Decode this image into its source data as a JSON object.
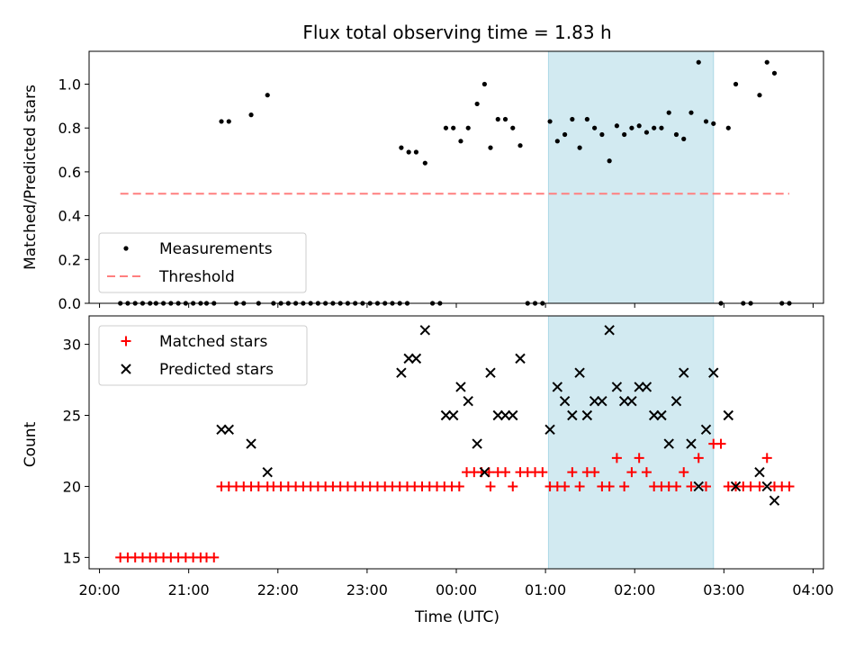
{
  "figure": {
    "title": "Flux total observing time = 1.83 h",
    "xlabel": "Time (UTC)"
  },
  "chart_data": [
    {
      "type": "scatter",
      "ylabel": "Matched/Predicted stars",
      "ylim": [
        0,
        1.15
      ],
      "yticks": [
        0.0,
        0.2,
        0.4,
        0.6,
        0.8,
        1.0
      ],
      "ytick_labels": [
        "0.0",
        "0.2",
        "0.4",
        "0.6",
        "0.8",
        "1.0"
      ],
      "xlim": [
        "19:53",
        "04:07"
      ],
      "xticks": [
        "20:00",
        "21:00",
        "22:00",
        "23:00",
        "00:00",
        "01:00",
        "02:00",
        "03:00",
        "04:00"
      ],
      "shaded_region": {
        "x": [
          "01:02",
          "02:53"
        ],
        "color": "#add8e6"
      },
      "legend": {
        "loc": "lower-left",
        "entries": [
          "Measurements",
          "Threshold"
        ]
      },
      "series": [
        {
          "name": "Measurements",
          "marker": "dot",
          "color": "#000000",
          "points": [
            [
              "20:14",
              0
            ],
            [
              "20:19",
              0
            ],
            [
              "20:24",
              0
            ],
            [
              "20:29",
              0
            ],
            [
              "20:34",
              0
            ],
            [
              "20:38",
              0
            ],
            [
              "20:43",
              0
            ],
            [
              "20:48",
              0
            ],
            [
              "20:53",
              0
            ],
            [
              "20:58",
              0
            ],
            [
              "21:03",
              0
            ],
            [
              "21:08",
              0
            ],
            [
              "21:12",
              0
            ],
            [
              "21:17",
              0
            ],
            [
              "21:22",
              0.83
            ],
            [
              "21:27",
              0.83
            ],
            [
              "21:32",
              0
            ],
            [
              "21:37",
              0
            ],
            [
              "21:42",
              0.86
            ],
            [
              "21:47",
              0
            ],
            [
              "21:53",
              0.95
            ],
            [
              "21:57",
              0
            ],
            [
              "22:02",
              0
            ],
            [
              "22:07",
              0
            ],
            [
              "22:12",
              0
            ],
            [
              "22:17",
              0
            ],
            [
              "22:22",
              0
            ],
            [
              "22:27",
              0
            ],
            [
              "22:32",
              0
            ],
            [
              "22:37",
              0
            ],
            [
              "22:42",
              0
            ],
            [
              "22:47",
              0
            ],
            [
              "22:52",
              0
            ],
            [
              "22:57",
              0
            ],
            [
              "23:02",
              0
            ],
            [
              "23:07",
              0
            ],
            [
              "23:12",
              0
            ],
            [
              "23:17",
              0
            ],
            [
              "23:22",
              0
            ],
            [
              "23:27",
              0
            ],
            [
              "23:23",
              0.71
            ],
            [
              "23:28",
              0.69
            ],
            [
              "23:33",
              0.69
            ],
            [
              "23:39",
              0.64
            ],
            [
              "23:44",
              0
            ],
            [
              "23:49",
              0
            ],
            [
              "23:53",
              0.8
            ],
            [
              "23:58",
              0.8
            ],
            [
              "00:03",
              0.74
            ],
            [
              "00:08",
              0.8
            ],
            [
              "00:14",
              0.91
            ],
            [
              "00:19",
              1.0
            ],
            [
              "00:23",
              0.71
            ],
            [
              "00:28",
              0.84
            ],
            [
              "00:33",
              0.84
            ],
            [
              "00:38",
              0.8
            ],
            [
              "00:43",
              0.72
            ],
            [
              "00:48",
              0
            ],
            [
              "00:53",
              0
            ],
            [
              "00:58",
              0
            ],
            [
              "01:03",
              0.83
            ],
            [
              "01:08",
              0.74
            ],
            [
              "01:13",
              0.77
            ],
            [
              "01:18",
              0.84
            ],
            [
              "01:23",
              0.71
            ],
            [
              "01:28",
              0.84
            ],
            [
              "01:33",
              0.8
            ],
            [
              "01:38",
              0.77
            ],
            [
              "01:43",
              0.65
            ],
            [
              "01:48",
              0.81
            ],
            [
              "01:53",
              0.77
            ],
            [
              "01:58",
              0.8
            ],
            [
              "02:03",
              0.81
            ],
            [
              "02:08",
              0.78
            ],
            [
              "02:13",
              0.8
            ],
            [
              "02:18",
              0.8
            ],
            [
              "02:23",
              0.87
            ],
            [
              "02:28",
              0.77
            ],
            [
              "02:33",
              0.75
            ],
            [
              "02:38",
              0.87
            ],
            [
              "02:43",
              1.1
            ],
            [
              "02:48",
              0.83
            ],
            [
              "02:53",
              0.82
            ],
            [
              "02:58",
              0
            ],
            [
              "03:03",
              0.8
            ],
            [
              "03:08",
              1.0
            ],
            [
              "03:13",
              0
            ],
            [
              "03:18",
              0
            ],
            [
              "03:24",
              0.95
            ],
            [
              "03:29",
              1.1
            ],
            [
              "03:34",
              1.05
            ],
            [
              "03:39",
              0
            ],
            [
              "03:44",
              0
            ]
          ]
        },
        {
          "name": "Threshold",
          "style": "dashed",
          "color": "#ff7f7f",
          "x": [
            "20:14",
            "03:44"
          ],
          "values": [
            0.5,
            0.5
          ]
        }
      ]
    },
    {
      "type": "scatter",
      "ylabel": "Count",
      "ylim": [
        14.2,
        32
      ],
      "yticks": [
        15,
        20,
        25,
        30
      ],
      "ytick_labels": [
        "15",
        "20",
        "25",
        "30"
      ],
      "xlim": [
        "19:53",
        "04:07"
      ],
      "xticks": [
        "20:00",
        "21:00",
        "22:00",
        "23:00",
        "00:00",
        "01:00",
        "02:00",
        "03:00",
        "04:00"
      ],
      "xtick_labels": [
        "20:00",
        "21:00",
        "22:00",
        "23:00",
        "00:00",
        "01:00",
        "02:00",
        "03:00",
        "04:00"
      ],
      "shaded_region": {
        "x": [
          "01:02",
          "02:53"
        ],
        "color": "#add8e6"
      },
      "legend": {
        "loc": "upper-left",
        "entries": [
          "Matched stars",
          "Predicted stars"
        ]
      },
      "series": [
        {
          "name": "Matched stars",
          "marker": "plus",
          "color": "#ff0000",
          "points": [
            [
              "20:14",
              15
            ],
            [
              "20:19",
              15
            ],
            [
              "20:24",
              15
            ],
            [
              "20:29",
              15
            ],
            [
              "20:34",
              15
            ],
            [
              "20:38",
              15
            ],
            [
              "20:43",
              15
            ],
            [
              "20:48",
              15
            ],
            [
              "20:53",
              15
            ],
            [
              "20:58",
              15
            ],
            [
              "21:03",
              15
            ],
            [
              "21:08",
              15
            ],
            [
              "21:12",
              15
            ],
            [
              "21:17",
              15
            ],
            [
              "21:22",
              20
            ],
            [
              "21:27",
              20
            ],
            [
              "21:32",
              20
            ],
            [
              "21:37",
              20
            ],
            [
              "21:42",
              20
            ],
            [
              "21:47",
              20
            ],
            [
              "21:53",
              20
            ],
            [
              "21:57",
              20
            ],
            [
              "22:02",
              20
            ],
            [
              "22:07",
              20
            ],
            [
              "22:12",
              20
            ],
            [
              "22:17",
              20
            ],
            [
              "22:22",
              20
            ],
            [
              "22:27",
              20
            ],
            [
              "22:32",
              20
            ],
            [
              "22:37",
              20
            ],
            [
              "22:42",
              20
            ],
            [
              "22:47",
              20
            ],
            [
              "22:52",
              20
            ],
            [
              "22:57",
              20
            ],
            [
              "23:02",
              20
            ],
            [
              "23:07",
              20
            ],
            [
              "23:12",
              20
            ],
            [
              "23:17",
              20
            ],
            [
              "23:22",
              20
            ],
            [
              "23:27",
              20
            ],
            [
              "23:32",
              20
            ],
            [
              "23:37",
              20
            ],
            [
              "23:42",
              20
            ],
            [
              "23:47",
              20
            ],
            [
              "23:52",
              20
            ],
            [
              "23:57",
              20
            ],
            [
              "00:02",
              20
            ],
            [
              "00:07",
              21
            ],
            [
              "00:12",
              21
            ],
            [
              "00:17",
              21
            ],
            [
              "00:22",
              21
            ],
            [
              "00:23",
              20
            ],
            [
              "00:28",
              21
            ],
            [
              "00:33",
              21
            ],
            [
              "00:38",
              20
            ],
            [
              "00:43",
              21
            ],
            [
              "00:48",
              21
            ],
            [
              "00:53",
              21
            ],
            [
              "00:58",
              21
            ],
            [
              "01:03",
              20
            ],
            [
              "01:08",
              20
            ],
            [
              "01:13",
              20
            ],
            [
              "01:18",
              21
            ],
            [
              "01:23",
              20
            ],
            [
              "01:28",
              21
            ],
            [
              "01:33",
              21
            ],
            [
              "01:38",
              20
            ],
            [
              "01:43",
              20
            ],
            [
              "01:48",
              22
            ],
            [
              "01:53",
              20
            ],
            [
              "01:58",
              21
            ],
            [
              "02:03",
              22
            ],
            [
              "02:08",
              21
            ],
            [
              "02:13",
              20
            ],
            [
              "02:18",
              20
            ],
            [
              "02:23",
              20
            ],
            [
              "02:28",
              20
            ],
            [
              "02:33",
              21
            ],
            [
              "02:38",
              20
            ],
            [
              "02:43",
              22
            ],
            [
              "02:48",
              20
            ],
            [
              "02:53",
              23
            ],
            [
              "02:58",
              23
            ],
            [
              "03:03",
              20
            ],
            [
              "03:08",
              20
            ],
            [
              "03:13",
              20
            ],
            [
              "03:18",
              20
            ],
            [
              "03:24",
              20
            ],
            [
              "03:29",
              22
            ],
            [
              "03:34",
              20
            ],
            [
              "03:39",
              20
            ],
            [
              "03:44",
              20
            ]
          ]
        },
        {
          "name": "Predicted stars",
          "marker": "x",
          "color": "#000000",
          "points": [
            [
              "21:22",
              24
            ],
            [
              "21:27",
              24
            ],
            [
              "21:42",
              23
            ],
            [
              "21:53",
              21
            ],
            [
              "23:23",
              28
            ],
            [
              "23:28",
              29
            ],
            [
              "23:33",
              29
            ],
            [
              "23:39",
              31
            ],
            [
              "23:53",
              25
            ],
            [
              "23:58",
              25
            ],
            [
              "00:03",
              27
            ],
            [
              "00:08",
              26
            ],
            [
              "00:14",
              23
            ],
            [
              "00:19",
              21
            ],
            [
              "00:23",
              28
            ],
            [
              "00:28",
              25
            ],
            [
              "00:33",
              25
            ],
            [
              "00:38",
              25
            ],
            [
              "00:43",
              29
            ],
            [
              "01:03",
              24
            ],
            [
              "01:08",
              27
            ],
            [
              "01:13",
              26
            ],
            [
              "01:18",
              25
            ],
            [
              "01:23",
              28
            ],
            [
              "01:28",
              25
            ],
            [
              "01:33",
              26
            ],
            [
              "01:38",
              26
            ],
            [
              "01:43",
              31
            ],
            [
              "01:48",
              27
            ],
            [
              "01:53",
              26
            ],
            [
              "01:58",
              26
            ],
            [
              "02:03",
              27
            ],
            [
              "02:08",
              27
            ],
            [
              "02:13",
              25
            ],
            [
              "02:18",
              25
            ],
            [
              "02:23",
              23
            ],
            [
              "02:28",
              26
            ],
            [
              "02:33",
              28
            ],
            [
              "02:38",
              23
            ],
            [
              "02:43",
              20
            ],
            [
              "02:48",
              24
            ],
            [
              "02:53",
              28
            ],
            [
              "03:03",
              25
            ],
            [
              "03:08",
              20
            ],
            [
              "03:24",
              21
            ],
            [
              "03:29",
              20
            ],
            [
              "03:34",
              19
            ]
          ]
        }
      ]
    }
  ]
}
